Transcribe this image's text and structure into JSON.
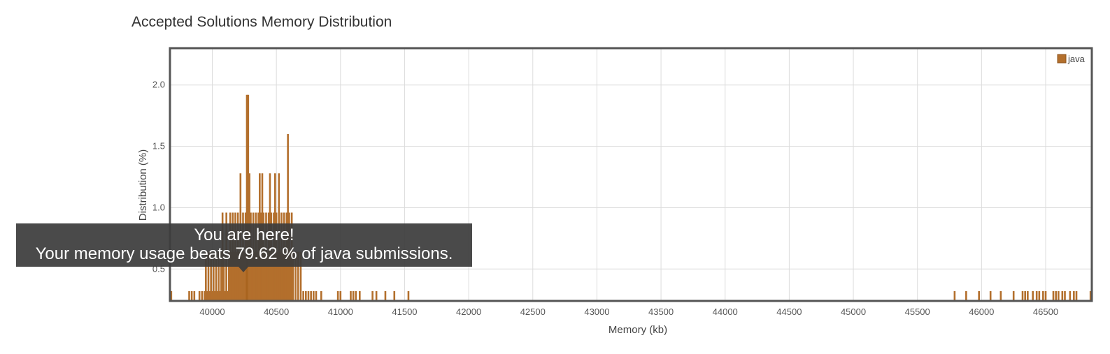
{
  "chart_data": {
    "type": "bar",
    "title": "Accepted Solutions Memory Distribution",
    "xlabel": "Memory (kb)",
    "ylabel": "Distribution (%)",
    "xlim": [
      39670,
      46860
    ],
    "ylim": [
      0.24,
      2.3
    ],
    "x_ticks": [
      40000,
      40500,
      41000,
      41500,
      42000,
      42500,
      43000,
      43500,
      44000,
      44500,
      45000,
      45500,
      46000,
      46500
    ],
    "y_ticks": [
      0.5,
      1.0,
      1.5,
      2.0
    ],
    "grid": true,
    "legend_position": "top-right",
    "color": "#b36f2c",
    "series": [
      {
        "name": "java",
        "points": [
          [
            39680,
            0.32
          ],
          [
            39820,
            0.32
          ],
          [
            39840,
            0.32
          ],
          [
            39860,
            0.32
          ],
          [
            39900,
            0.32
          ],
          [
            39920,
            0.32
          ],
          [
            39940,
            0.32
          ],
          [
            39960,
            0.32
          ],
          [
            39980,
            0.32
          ],
          [
            40000,
            0.32
          ],
          [
            40020,
            0.32
          ],
          [
            40040,
            0.32
          ],
          [
            40060,
            0.32
          ],
          [
            40080,
            0.32
          ],
          [
            40100,
            0.32
          ],
          [
            40120,
            0.32
          ],
          [
            39950,
            0.64
          ],
          [
            39970,
            0.64
          ],
          [
            39990,
            0.64
          ],
          [
            40010,
            0.64
          ],
          [
            40030,
            0.64
          ],
          [
            40050,
            0.64
          ],
          [
            40070,
            0.64
          ],
          [
            40090,
            0.64
          ],
          [
            40110,
            0.64
          ],
          [
            40130,
            0.64
          ],
          [
            40150,
            0.64
          ],
          [
            40170,
            0.64
          ],
          [
            40190,
            0.64
          ],
          [
            40080,
            0.96
          ],
          [
            40110,
            0.96
          ],
          [
            40140,
            0.96
          ],
          [
            40160,
            0.96
          ],
          [
            40180,
            0.96
          ],
          [
            40200,
            0.96
          ],
          [
            40220,
            0.96
          ],
          [
            40240,
            0.96
          ],
          [
            40260,
            0.96
          ],
          [
            40280,
            0.96
          ],
          [
            40300,
            0.96
          ],
          [
            40320,
            0.96
          ],
          [
            40340,
            0.96
          ],
          [
            40360,
            0.96
          ],
          [
            40380,
            0.96
          ],
          [
            40400,
            0.96
          ],
          [
            40420,
            0.96
          ],
          [
            40440,
            0.96
          ],
          [
            40460,
            0.96
          ],
          [
            40480,
            0.96
          ],
          [
            40500,
            0.96
          ],
          [
            40520,
            0.96
          ],
          [
            40540,
            0.96
          ],
          [
            40560,
            0.96
          ],
          [
            40580,
            0.96
          ],
          [
            40600,
            0.96
          ],
          [
            40620,
            0.96
          ],
          [
            40220,
            1.28
          ],
          [
            40290,
            1.28
          ],
          [
            40370,
            1.28
          ],
          [
            40390,
            1.28
          ],
          [
            40450,
            1.28
          ],
          [
            40490,
            1.28
          ],
          [
            40520,
            1.28
          ],
          [
            40270,
            1.92
          ],
          [
            40280,
            1.92
          ],
          [
            40590,
            1.6
          ],
          [
            40210,
            0.64
          ],
          [
            40230,
            0.64
          ],
          [
            40250,
            0.64
          ],
          [
            40270,
            0.64
          ],
          [
            40290,
            0.64
          ],
          [
            40310,
            0.64
          ],
          [
            40330,
            0.64
          ],
          [
            40350,
            0.64
          ],
          [
            40370,
            0.64
          ],
          [
            40390,
            0.64
          ],
          [
            40410,
            0.64
          ],
          [
            40430,
            0.64
          ],
          [
            40450,
            0.64
          ],
          [
            40470,
            0.64
          ],
          [
            40490,
            0.64
          ],
          [
            40510,
            0.64
          ],
          [
            40530,
            0.64
          ],
          [
            40550,
            0.64
          ],
          [
            40570,
            0.64
          ],
          [
            40610,
            0.64
          ],
          [
            40630,
            0.64
          ],
          [
            40650,
            0.64
          ],
          [
            40670,
            0.64
          ],
          [
            40690,
            0.64
          ],
          [
            40710,
            0.32
          ],
          [
            40730,
            0.32
          ],
          [
            40750,
            0.32
          ],
          [
            40770,
            0.32
          ],
          [
            40790,
            0.32
          ],
          [
            40810,
            0.32
          ],
          [
            40850,
            0.32
          ],
          [
            40980,
            0.32
          ],
          [
            41000,
            0.32
          ],
          [
            41080,
            0.32
          ],
          [
            41100,
            0.32
          ],
          [
            41120,
            0.32
          ],
          [
            41150,
            0.32
          ],
          [
            41250,
            0.32
          ],
          [
            41280,
            0.32
          ],
          [
            41350,
            0.32
          ],
          [
            41420,
            0.32
          ],
          [
            41530,
            0.32
          ],
          [
            45790,
            0.32
          ],
          [
            45880,
            0.32
          ],
          [
            45980,
            0.32
          ],
          [
            46070,
            0.32
          ],
          [
            46150,
            0.32
          ],
          [
            46250,
            0.32
          ],
          [
            46320,
            0.32
          ],
          [
            46340,
            0.32
          ],
          [
            46360,
            0.32
          ],
          [
            46400,
            0.32
          ],
          [
            46430,
            0.32
          ],
          [
            46450,
            0.32
          ],
          [
            46480,
            0.32
          ],
          [
            46500,
            0.32
          ],
          [
            46560,
            0.32
          ],
          [
            46580,
            0.32
          ],
          [
            46600,
            0.32
          ],
          [
            46630,
            0.32
          ],
          [
            46650,
            0.32
          ],
          [
            46690,
            0.32
          ],
          [
            46720,
            0.32
          ],
          [
            46740,
            0.32
          ],
          [
            46850,
            0.32
          ]
        ]
      }
    ]
  },
  "tooltip": {
    "line1": "You are here!",
    "line2": "Your memory usage beats 79.62 % of java submissions."
  }
}
